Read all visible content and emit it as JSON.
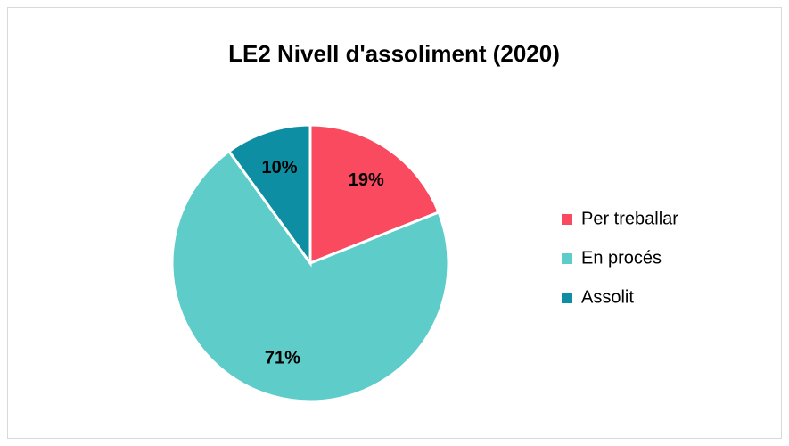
{
  "chart_data": {
    "type": "pie",
    "title": "LE2 Nivell d'assoliment (2020)",
    "categories": [
      "Per treballar",
      "En procés",
      "Assolit"
    ],
    "values": [
      19,
      71,
      10
    ],
    "value_labels": [
      "19%",
      "71%",
      "10%"
    ],
    "colors": [
      "#f94a5f",
      "#5ecdc9",
      "#0e8ea3"
    ],
    "legend": "right"
  }
}
